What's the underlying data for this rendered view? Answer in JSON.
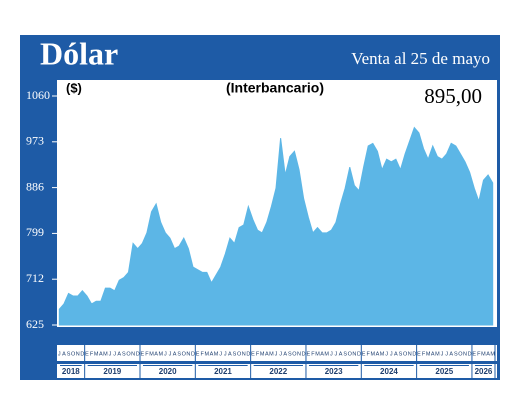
{
  "chart_data": {
    "type": "area",
    "title": "Dólar",
    "subtitle": "Venta al 25 de mayo",
    "annotations": [
      "($)",
      "(Interbancario)",
      "895,00"
    ],
    "categories": [
      "J",
      "A",
      "S",
      "O",
      "N",
      "D",
      "E",
      "F",
      "M",
      "A",
      "M",
      "J",
      "J",
      "A",
      "S",
      "O",
      "N",
      "D",
      "E",
      "F",
      "M",
      "A",
      "M",
      "J",
      "J",
      "A",
      "S",
      "O",
      "N",
      "D",
      "E",
      "F",
      "M",
      "A",
      "M",
      "J",
      "J",
      "A",
      "S",
      "O",
      "N",
      "D",
      "E",
      "F",
      "M",
      "A",
      "M",
      "J",
      "J",
      "A",
      "S",
      "O",
      "N",
      "D",
      "E",
      "F",
      "M",
      "A",
      "M",
      "J",
      "J",
      "A",
      "S",
      "O",
      "N",
      "D",
      "E",
      "F",
      "M",
      "A",
      "M",
      "J",
      "J",
      "A",
      "S",
      "O",
      "N",
      "D",
      "E",
      "F",
      "M",
      "A",
      "M",
      "J",
      "J",
      "A",
      "S",
      "O",
      "N",
      "D",
      "E",
      "F",
      "M",
      "A",
      "M"
    ],
    "year_labels": [
      "2018",
      "2019",
      "2020",
      "2021",
      "2022",
      "2023",
      "2024",
      "2025",
      "2026"
    ],
    "values": [
      655,
      665,
      685,
      680,
      680,
      690,
      680,
      665,
      670,
      670,
      695,
      695,
      690,
      710,
      715,
      725,
      780,
      770,
      780,
      800,
      840,
      855,
      820,
      800,
      790,
      770,
      775,
      790,
      770,
      735,
      730,
      725,
      725,
      705,
      720,
      735,
      760,
      790,
      780,
      810,
      815,
      850,
      825,
      805,
      800,
      820,
      850,
      885,
      980,
      910,
      945,
      955,
      920,
      865,
      830,
      800,
      810,
      800,
      800,
      805,
      820,
      855,
      885,
      925,
      890,
      880,
      925,
      965,
      970,
      955,
      920,
      940,
      935,
      940,
      920,
      950,
      975,
      1000,
      990,
      960,
      940,
      965,
      945,
      940,
      950,
      970,
      965,
      950,
      935,
      915,
      885,
      860,
      900,
      910,
      895
    ],
    "color": "#5cb6e6",
    "ylim": [
      625,
      1060
    ],
    "yticks": [
      625,
      712,
      799,
      886,
      973,
      1060
    ]
  }
}
